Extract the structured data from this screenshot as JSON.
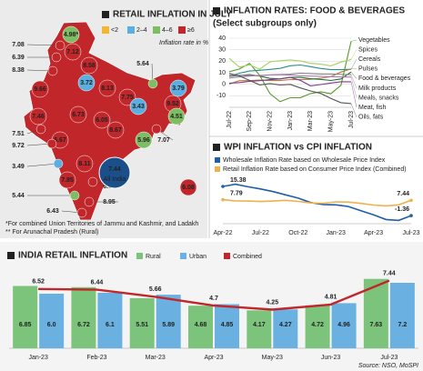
{
  "chart_data": [
    {
      "type": "map",
      "title": "RETAIL INFLATION IN JULY",
      "subtitle": "Inflation rate in %",
      "classes": [
        {
          "label": "<2",
          "color": "#f2b632"
        },
        {
          "label": "2–4",
          "color": "#5aaee0"
        },
        {
          "label": "4–6",
          "color": "#7dbd63"
        },
        {
          "label": "≥6",
          "color": "#c0262a"
        }
      ],
      "values": [
        4.98,
        7.08,
        7.12,
        6.39,
        8.58,
        8.38,
        9.66,
        3.72,
        8.13,
        5.64,
        7.75,
        3.79,
        7.46,
        6.73,
        9.52,
        7.51,
        6.67,
        4.51,
        9.72,
        8.67,
        6.05,
        7.07,
        5.96,
        3.43,
        8.11,
        3.49,
        7.85,
        6.66,
        5.44,
        8.95,
        6.43,
        6.08
      ],
      "value_labels": [
        "4.98*",
        "7.08",
        "7.12",
        "6.39",
        "8.58",
        "8.38",
        "9.66",
        "3.72",
        "8.13",
        "5.64",
        "7.75",
        "3.79",
        "7.46",
        "6.73",
        "9.52",
        "7.51",
        "6.67",
        "4.51",
        "9.72",
        "8.67",
        "6.05",
        "7.07",
        "5.96",
        "3.43",
        "8.11",
        "3.49",
        "7.85",
        "6.66",
        "5.44",
        "8.95",
        "6.43",
        "6.08"
      ],
      "colors": [
        "#7dbd63",
        "#c0262a",
        "#c0262a",
        "#c0262a",
        "#c0262a",
        "#c0262a",
        "#c0262a",
        "#5aaee0",
        "#c0262a",
        "#7dbd63",
        "#c0262a",
        "#5aaee0",
        "#c0262a",
        "#c0262a",
        "#c0262a",
        "#c0262a",
        "#c0262a",
        "#7dbd63",
        "#c0262a",
        "#c0262a",
        "#c0262a",
        "#c0262a",
        "#7dbd63",
        "#5aaee0",
        "#c0262a",
        "#5aaee0",
        "#c0262a",
        "#c0262a",
        "#7dbd63",
        "#c0262a",
        "#c0262a",
        "#c0262a"
      ],
      "all_india": {
        "value": 7.44,
        "label": "All India"
      },
      "notes": [
        "*For combined Union Territories of Jammu and Kashmir, and Ladakh",
        "** For Arunachal Pradesh (Rural)"
      ]
    },
    {
      "type": "line",
      "title": "INFLATION RATES: FOOD & BEVERAGES",
      "subtitle": "(Select subgroups only)",
      "categories": [
        "Jul-22",
        null,
        "Sep-22",
        null,
        "Nov-22",
        null,
        "Jan-23",
        null,
        "Mar-23",
        null,
        "May-23",
        null,
        "Jul-23"
      ],
      "ylim": [
        -20,
        40
      ],
      "yticks": [
        -10,
        0,
        10,
        20,
        30,
        40
      ],
      "grid": true,
      "series": [
        {
          "name": "Vegetables",
          "color": "#5a9a2e",
          "values": [
            10.9,
            13.2,
            18.1,
            7.8,
            -8.1,
            -15.1,
            -11.7,
            -11.6,
            -8.1,
            -6.5,
            -8.2,
            -0.9,
            37.3
          ]
        },
        {
          "name": "Spices",
          "color": "#a8d060",
          "values": [
            22.5,
            14.9,
            16.9,
            13.1,
            19.5,
            20.4,
            21.1,
            20.2,
            18.2,
            17.4,
            16.0,
            19.2,
            21.6
          ]
        },
        {
          "name": "Cereals",
          "color": "#2e8b8b",
          "values": [
            6.9,
            9.6,
            11.5,
            12.1,
            12.9,
            13.8,
            16.1,
            16.7,
            15.3,
            13.7,
            12.7,
            12.7,
            13.0
          ]
        },
        {
          "name": "Pulses",
          "color": "#c07840",
          "values": [
            0.2,
            3.1,
            3.1,
            3.6,
            3.2,
            3.2,
            4.1,
            4.0,
            4.3,
            5.3,
            6.6,
            10.6,
            13.3
          ]
        },
        {
          "name": "Food & beverages",
          "color": "#1e6e3a",
          "values": [
            7.0,
            7.6,
            8.4,
            7.1,
            5.1,
            4.6,
            6.0,
            5.95,
            4.8,
            4.2,
            3.3,
            4.6,
            10.6
          ]
        },
        {
          "name": "Milk products",
          "color": "#8a8a8a",
          "values": [
            5.4,
            6.4,
            7.1,
            7.7,
            8.2,
            8.5,
            8.8,
            9.7,
            9.3,
            8.9,
            8.9,
            8.6,
            8.3
          ]
        },
        {
          "name": "Meals, snacks",
          "color": "#b07ab0",
          "values": [
            7.7,
            7.9,
            7.5,
            7.5,
            8.0,
            8.3,
            8.0,
            7.3,
            7.1,
            6.9,
            6.6,
            6.4,
            6.3
          ]
        },
        {
          "name": "Meat, fish",
          "color": "#7a3b8c",
          "values": [
            0.9,
            1.5,
            2.6,
            3.1,
            4.0,
            4.6,
            6.0,
            3.4,
            -1.4,
            -0.3,
            1.1,
            2.2,
            2.2
          ]
        },
        {
          "name": "Oils, fats",
          "color": "#555555",
          "values": [
            9.4,
            7.2,
            3.4,
            -0.6,
            0.6,
            -0.6,
            -0.1,
            -3.2,
            -5.8,
            -7.9,
            -12.3,
            -16.0,
            -16.8
          ]
        }
      ]
    },
    {
      "type": "line",
      "title": "WPI INFLATION vs CPI INFLATION",
      "categories": [
        "Apr-22",
        null,
        null,
        "Jul-22",
        null,
        null,
        "Oct-22",
        null,
        null,
        "Jan-23",
        null,
        null,
        "Apr-23",
        null,
        null,
        "Jul-23"
      ],
      "ylim": [
        -6,
        18
      ],
      "series": [
        {
          "name": "Wholesale Inflation Rate based on Wholesale Price Index",
          "color": "#1f5fa8",
          "values": [
            15.38,
            16.63,
            15.18,
            13.93,
            12.41,
            10.55,
            8.67,
            6.12,
            5.02,
            4.8,
            3.85,
            1.41,
            -0.92,
            -3.61,
            -4.12,
            -1.36
          ]
        },
        {
          "name": "Retail Inflation Rate based on Consumer Price Index (Combined)",
          "color": "#f0b04a",
          "values": [
            7.79,
            7.04,
            7.01,
            6.71,
            7.0,
            7.41,
            6.77,
            5.88,
            5.72,
            6.52,
            6.44,
            5.66,
            4.7,
            4.25,
            4.81,
            7.44
          ]
        }
      ]
    },
    {
      "type": "bar_line",
      "title": "INDIA RETAIL INFLATION",
      "source": "Source: NSO, MoSPI",
      "categories": [
        "Jan-23",
        "Feb-23",
        "Mar-23",
        "Apr-23",
        "May-23",
        "Jun-23",
        "Jul-23"
      ],
      "ylim": [
        0,
        8
      ],
      "series": [
        {
          "name": "Rural",
          "color": "#7cc47c",
          "values": [
            6.85,
            6.72,
            5.51,
            4.68,
            4.17,
            4.72,
            7.63
          ]
        },
        {
          "name": "Urban",
          "color": "#6ab0e0",
          "values": [
            6,
            6.1,
            5.89,
            4.85,
            4.27,
            4.96,
            7.2
          ],
          "value_labels": [
            "6.0",
            "6.1",
            "5.89",
            "4.85",
            "4.27",
            "4.96",
            "7.2"
          ]
        },
        {
          "name": "Combined",
          "color": "#c0262a",
          "values": [
            6.52,
            6.44,
            5.66,
            4.7,
            4.25,
            4.81,
            7.44
          ]
        }
      ]
    }
  ]
}
